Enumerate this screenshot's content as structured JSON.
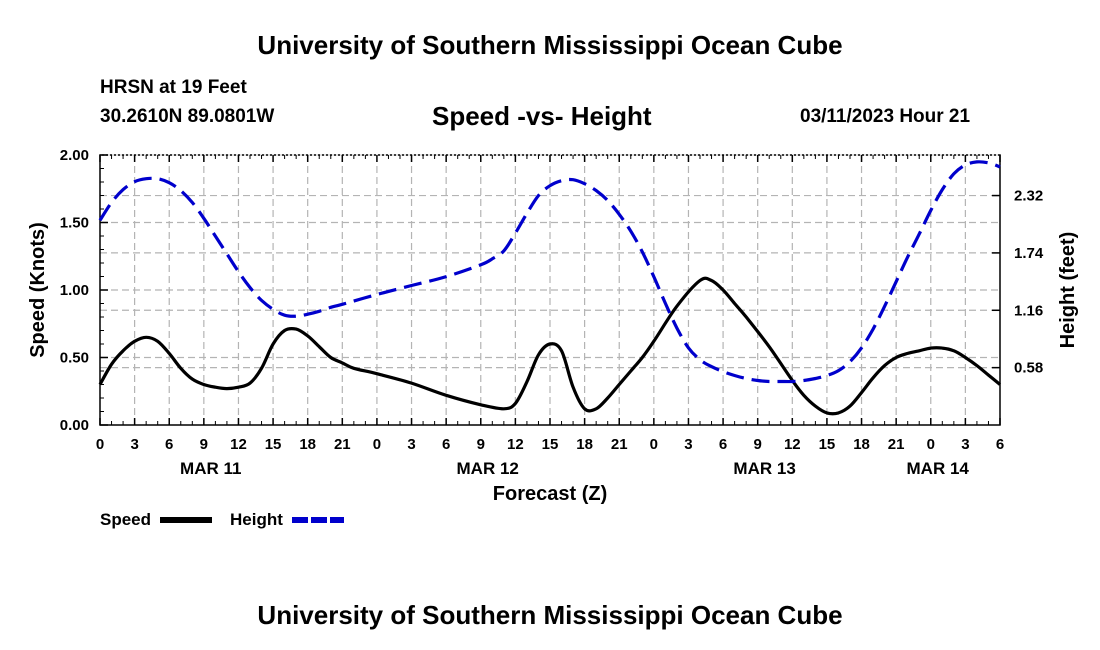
{
  "header": {
    "title": "University of Southern Mississippi Ocean Cube",
    "station": "HRSN at 19 Feet",
    "coords": "30.2610N  89.0801W",
    "datetime": "03/11/2023 Hour 21"
  },
  "footer": {
    "title": "University of Southern Mississippi Ocean Cube"
  },
  "colors": {
    "speed": "#000000",
    "height": "#0000cc",
    "grid": "#b4b4b4"
  },
  "chart_data": {
    "type": "line",
    "title": "Speed -vs- Height",
    "xlabel": "Forecast (Z)",
    "ylabel": "Speed (Knots)",
    "ylabel_right": "Height (feet)",
    "x_unit": "hours since MAR 11 00Z",
    "xlim": [
      0,
      78
    ],
    "ylim": [
      0,
      2.0
    ],
    "ylim_right": [
      0,
      2.73
    ],
    "y_ticks": [
      "0.00",
      "0.50",
      "1.00",
      "1.50",
      "2.00"
    ],
    "y_ticks_right": [
      "0.58",
      "1.16",
      "1.74",
      "2.32"
    ],
    "x_tick_labels": [
      "0",
      "3",
      "6",
      "9",
      "12",
      "15",
      "18",
      "21",
      "0",
      "3",
      "6",
      "9",
      "12",
      "15",
      "18",
      "21",
      "0",
      "3",
      "6",
      "9",
      "12",
      "15",
      "18",
      "21",
      "0",
      "3",
      "6"
    ],
    "date_labels": [
      {
        "label": "MAR 11",
        "x": 9.6
      },
      {
        "label": "MAR 12",
        "x": 33.6
      },
      {
        "label": "MAR 13",
        "x": 57.6
      },
      {
        "label": "MAR 14",
        "x": 72.6
      }
    ],
    "grid": true,
    "series": [
      {
        "name": "Speed",
        "axis": "left",
        "style": "solid",
        "x": [
          0,
          1,
          2,
          3,
          4,
          5,
          6,
          7,
          8,
          9,
          10,
          11,
          12,
          13,
          14,
          15,
          16,
          17,
          18,
          19,
          20,
          21,
          22,
          24,
          27,
          30,
          33,
          35,
          36,
          37,
          38,
          39,
          40,
          41,
          42,
          43,
          44,
          45,
          46,
          47,
          48,
          50,
          52,
          53,
          54,
          55,
          56,
          58,
          60,
          61,
          62,
          63,
          64,
          65,
          66,
          67,
          68,
          69,
          70,
          71,
          72,
          73,
          74,
          75,
          76,
          77,
          78
        ],
        "values": [
          0.3,
          0.45,
          0.55,
          0.62,
          0.65,
          0.62,
          0.53,
          0.42,
          0.34,
          0.3,
          0.28,
          0.27,
          0.28,
          0.31,
          0.42,
          0.6,
          0.7,
          0.71,
          0.66,
          0.58,
          0.5,
          0.46,
          0.42,
          0.38,
          0.31,
          0.22,
          0.15,
          0.12,
          0.16,
          0.32,
          0.52,
          0.6,
          0.55,
          0.28,
          0.12,
          0.12,
          0.2,
          0.3,
          0.4,
          0.5,
          0.62,
          0.88,
          1.07,
          1.07,
          1.0,
          0.9,
          0.8,
          0.58,
          0.33,
          0.22,
          0.14,
          0.09,
          0.09,
          0.14,
          0.24,
          0.35,
          0.44,
          0.5,
          0.53,
          0.55,
          0.57,
          0.57,
          0.55,
          0.5,
          0.44,
          0.37,
          0.3
        ]
      },
      {
        "name": "Height",
        "axis": "right",
        "style": "dashed",
        "x": [
          0,
          1,
          2,
          3,
          4,
          5,
          6,
          7,
          8,
          9,
          10,
          11,
          12,
          13,
          14,
          15,
          16,
          17,
          18,
          19,
          20,
          21,
          24,
          27,
          30,
          33,
          34,
          35,
          36,
          37,
          38,
          39,
          40,
          41,
          42,
          43,
          44,
          45,
          46,
          47,
          48,
          49,
          50,
          51,
          52,
          53,
          54,
          55,
          56,
          57,
          58,
          59,
          60,
          61,
          62,
          63,
          64,
          65,
          66,
          67,
          68,
          69,
          70,
          71,
          72,
          73,
          74,
          75,
          76,
          77,
          78
        ],
        "values": [
          2.07,
          2.25,
          2.38,
          2.46,
          2.49,
          2.49,
          2.45,
          2.37,
          2.25,
          2.09,
          1.91,
          1.73,
          1.55,
          1.39,
          1.26,
          1.17,
          1.11,
          1.1,
          1.12,
          1.15,
          1.19,
          1.22,
          1.32,
          1.41,
          1.5,
          1.62,
          1.68,
          1.76,
          1.94,
          2.14,
          2.32,
          2.42,
          2.47,
          2.48,
          2.44,
          2.37,
          2.27,
          2.13,
          1.96,
          1.75,
          1.5,
          1.23,
          0.98,
          0.78,
          0.66,
          0.59,
          0.54,
          0.5,
          0.47,
          0.45,
          0.44,
          0.44,
          0.44,
          0.45,
          0.47,
          0.5,
          0.55,
          0.64,
          0.78,
          0.97,
          1.2,
          1.45,
          1.7,
          1.93,
          2.17,
          2.38,
          2.54,
          2.63,
          2.66,
          2.65,
          2.61
        ]
      }
    ],
    "legend": {
      "position": "bottom-left",
      "entries": [
        {
          "label": "Speed",
          "style": "solid"
        },
        {
          "label": "Height",
          "style": "dashed"
        }
      ]
    }
  }
}
